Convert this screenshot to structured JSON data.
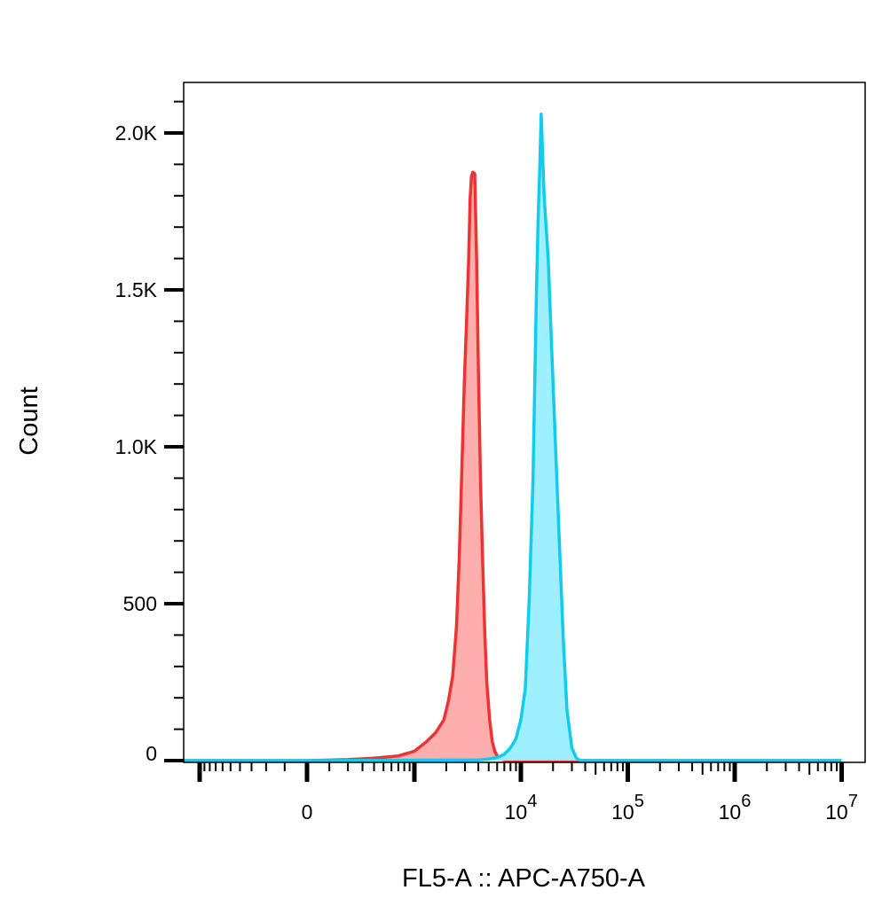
{
  "chart_data": {
    "type": "area",
    "xlabel": "FL5-A :: APC-A750-A",
    "ylabel": "Count",
    "x_scale": "biexponential",
    "ylim": [
      0,
      2150
    ],
    "grid": false,
    "legend": "none",
    "y_ticks": [
      {
        "value": 0,
        "label": "0"
      },
      {
        "value": 500,
        "label": "500"
      },
      {
        "value": 1000,
        "label": "1.0K"
      },
      {
        "value": 1500,
        "label": "1.5K"
      },
      {
        "value": 2000,
        "label": "2.0K"
      }
    ],
    "x_ticks": [
      {
        "value": 0,
        "label": "0"
      },
      {
        "value": 10000,
        "label": "10",
        "exp": "4"
      },
      {
        "value": 100000,
        "label": "10",
        "exp": "5"
      },
      {
        "value": 1000000,
        "label": "10",
        "exp": "6"
      },
      {
        "value": 10000000,
        "label": "10",
        "exp": "7"
      }
    ],
    "series": [
      {
        "color": "#ee3333",
        "fill": "#ffaaaa",
        "x": [
          -1500,
          0,
          200,
          400,
          700,
          1000,
          1300,
          1600,
          1900,
          2100,
          2300,
          2500,
          2650,
          2800,
          2950,
          3100,
          3250,
          3350,
          3450,
          3550,
          3700,
          3850,
          4000,
          4200,
          4400,
          4600,
          4800,
          5100,
          5400,
          5700,
          6000,
          6500,
          7000,
          8000,
          9000,
          12000,
          15000,
          10000000
        ],
        "values": [
          0,
          0,
          3,
          8,
          15,
          30,
          60,
          90,
          130,
          190,
          270,
          430,
          650,
          920,
          1200,
          1400,
          1600,
          1790,
          1860,
          1875,
          1870,
          1600,
          1250,
          880,
          620,
          400,
          250,
          130,
          60,
          30,
          15,
          6,
          2,
          0,
          0,
          0,
          0,
          0
        ]
      },
      {
        "color": "#11ccee",
        "fill": "#99eeff",
        "x": [
          -1500,
          0,
          4000,
          5000,
          6000,
          7000,
          8000,
          9000,
          10000,
          11000,
          12000,
          13000,
          14000,
          14500,
          15000,
          15500,
          16500,
          18000,
          19500,
          21000,
          23000,
          25000,
          27000,
          30000,
          33000,
          36000,
          40000,
          45000,
          10000000
        ],
        "values": [
          0,
          0,
          2,
          5,
          10,
          20,
          40,
          70,
          130,
          230,
          520,
          900,
          1500,
          1720,
          1880,
          2060,
          1800,
          1600,
          1300,
          1020,
          680,
          380,
          160,
          40,
          8,
          0,
          0,
          0,
          0
        ]
      }
    ]
  }
}
